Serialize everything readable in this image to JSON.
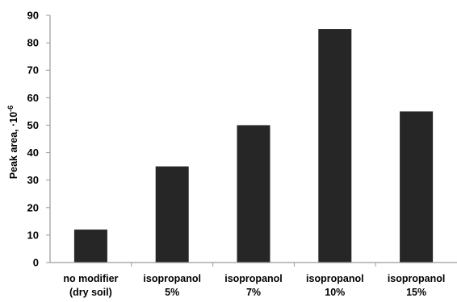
{
  "chart_data": {
    "type": "bar",
    "categories": [
      [
        "no modifier",
        "(dry soil)"
      ],
      [
        "isopropanol",
        "5%"
      ],
      [
        "isopropanol",
        "7%"
      ],
      [
        "isopropanol",
        "10%"
      ],
      [
        "isopropanol",
        "15%"
      ]
    ],
    "values": [
      12,
      35,
      50,
      85,
      55
    ],
    "title": "",
    "xlabel": "",
    "ylabel": "Peak area, ·10",
    "ylabel_superscript": "-6",
    "ylim": [
      0,
      90
    ],
    "yticks": [
      0,
      10,
      20,
      30,
      40,
      50,
      60,
      70,
      80,
      90
    ],
    "grid": false,
    "legend": "none",
    "bar_color": "#262626",
    "axis_color": "#9a9a9a"
  }
}
